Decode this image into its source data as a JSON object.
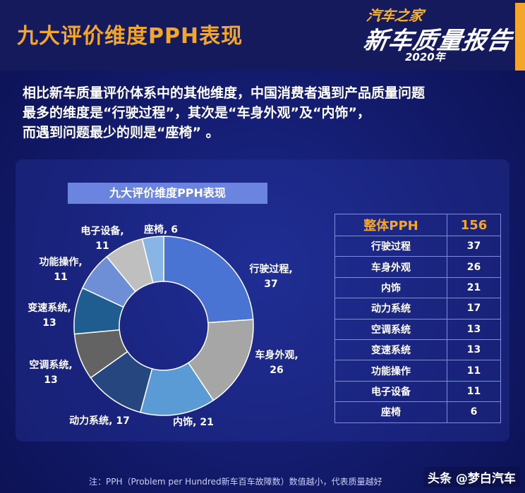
{
  "header": {
    "title": "九大评价维度PPH表现",
    "logo_top": "汽车之家",
    "logo_main": "新车质量报告",
    "logo_year": "2020年"
  },
  "intro": {
    "line1": "相比新车质量评价体系中的其他维度，中国消费者遇到产品质量问题",
    "line2": "最多的维度是“行驶过程”，其次是“车身外观”及“内饰”，",
    "line3": "而遇到问题最少的则是“座椅” 。"
  },
  "chart_data": {
    "type": "pie",
    "title": "九大评价维度PPH表现",
    "categories": [
      "行驶过程",
      "车身外观",
      "内饰",
      "动力系统",
      "空调系统",
      "变速系统",
      "功能操作",
      "电子设备",
      "座椅"
    ],
    "values": [
      37,
      26,
      21,
      17,
      13,
      13,
      11,
      11,
      6
    ],
    "colors": [
      "#4a74d4",
      "#a6a6a6",
      "#5b9bd5",
      "#25467e",
      "#636363",
      "#1f5c90",
      "#6e8fd6",
      "#bfbfbf",
      "#88b4e6"
    ],
    "donut": true
  },
  "labels": [
    {
      "name": "行驶过程,",
      "value": "37"
    },
    {
      "name": "车身外观,",
      "value": "26"
    },
    {
      "name": "内饰,",
      "value": "21"
    },
    {
      "name": "动力系统,",
      "value": "17"
    },
    {
      "name": "空调系统,",
      "value": "13"
    },
    {
      "name": "变速系统,",
      "value": "13"
    },
    {
      "name": "功能操作,",
      "value": "11"
    },
    {
      "name": "电子设备,",
      "value": "11"
    },
    {
      "name": "座椅,",
      "value": "6"
    }
  ],
  "table": {
    "header": {
      "label": "整体PPH",
      "value": "156"
    },
    "rows": [
      {
        "label": "行驶过程",
        "value": "37"
      },
      {
        "label": "车身外观",
        "value": "26"
      },
      {
        "label": "内饰",
        "value": "21"
      },
      {
        "label": "动力系统",
        "value": "17"
      },
      {
        "label": "空调系统",
        "value": "13"
      },
      {
        "label": "变速系统",
        "value": "13"
      },
      {
        "label": "功能操作",
        "value": "11"
      },
      {
        "label": "电子设备",
        "value": "11"
      },
      {
        "label": "座椅",
        "value": "6"
      }
    ]
  },
  "footnote": "注：PPH（Problem per Hundred新车百车故障数）数值越小，代表质量越好",
  "watermark": "头条 @梦白汽车"
}
